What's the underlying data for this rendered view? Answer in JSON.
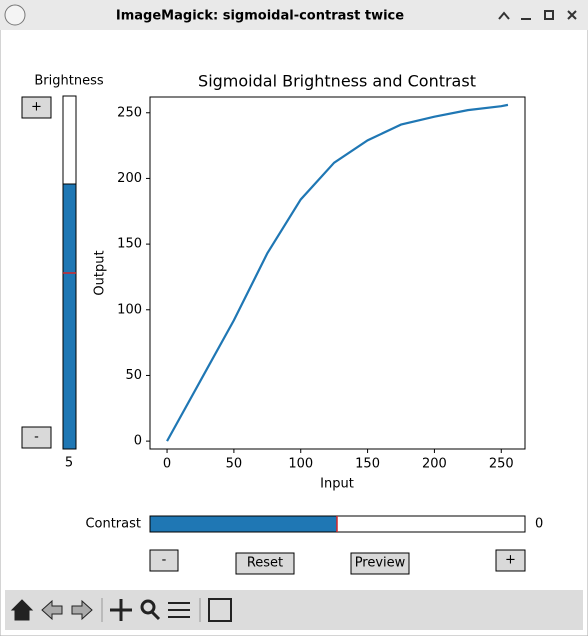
{
  "window": {
    "title": "ImageMagick: sigmoidal-contrast twice"
  },
  "brightness": {
    "label": "Brightness",
    "value": 5,
    "plus": "+",
    "minus": "-"
  },
  "contrast": {
    "label": "Contrast",
    "value": 0
  },
  "buttons": {
    "minus": "-",
    "reset": "Reset",
    "preview": "Preview",
    "plus": "+"
  },
  "chart_data": {
    "type": "line",
    "title": "Sigmoidal Brightness and Contrast",
    "x_label": "Input",
    "y_label": "Output",
    "x": [
      0,
      25,
      50,
      75,
      100,
      125,
      150,
      175,
      200,
      225,
      250,
      255
    ],
    "series": [
      {
        "color": "#1f77b4",
        "values": [
          0,
          46,
          92,
          143,
          184,
          212,
          229,
          241,
          247,
          252,
          255,
          256
        ]
      }
    ],
    "xlim": [
      -12.75,
      267.75
    ],
    "ylim": [
      -6,
      262
    ],
    "xticks": [
      0,
      50,
      100,
      150,
      200,
      250
    ],
    "yticks": [
      0,
      50,
      100,
      150,
      200,
      250
    ]
  }
}
